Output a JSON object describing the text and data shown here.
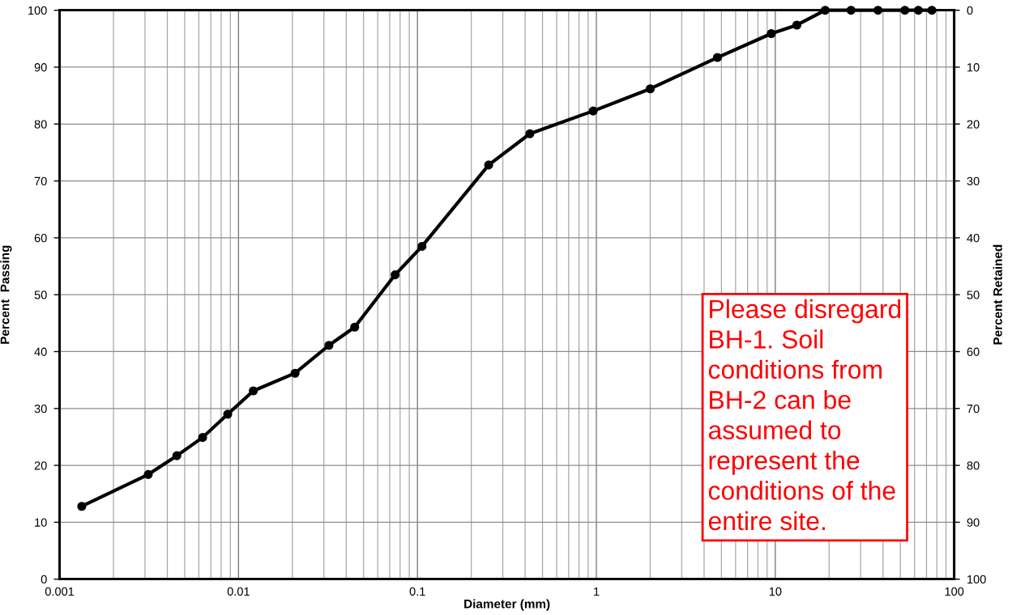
{
  "chart_data": {
    "type": "line",
    "xlabel": "Diameter (mm)",
    "ylabel": "Percent  Passing",
    "y2label": "Percent Retained",
    "x": [
      0.00133,
      0.00313,
      0.00452,
      0.0063,
      0.0087,
      0.0121,
      0.0207,
      0.032,
      0.0446,
      0.075,
      0.106,
      0.25,
      0.425,
      0.96,
      2.0,
      4.75,
      9.5,
      13.2,
      19,
      26.5,
      37.5,
      53,
      63,
      75
    ],
    "values": [
      12.8,
      18.4,
      21.7,
      24.9,
      29.0,
      33.1,
      36.2,
      41.1,
      44.3,
      53.5,
      58.5,
      72.8,
      78.3,
      82.3,
      86.2,
      91.7,
      95.9,
      97.4,
      100,
      100,
      100,
      100,
      100,
      100
    ],
    "color": "#000000",
    "marker": "circle",
    "line_style": "solid",
    "log": "x",
    "grid": true,
    "xlim": [
      0.001,
      100
    ],
    "xticks": [
      0.001,
      {
        "value": 0.002,
        "label": null
      },
      {
        "value": 0.003,
        "label": null
      },
      {
        "value": 0.004,
        "label": null
      },
      {
        "value": 0.005,
        "label": null
      },
      {
        "value": 0.006,
        "label": null
      },
      {
        "value": 0.007,
        "label": null
      },
      {
        "value": 0.008,
        "label": null
      },
      {
        "value": 0.009,
        "label": null
      },
      0.01,
      {
        "value": 0.02,
        "label": null
      },
      {
        "value": 0.03,
        "label": null
      },
      {
        "value": 0.04,
        "label": null
      },
      {
        "value": 0.05,
        "label": null
      },
      {
        "value": 0.06,
        "label": null
      },
      {
        "value": 0.07,
        "label": null
      },
      {
        "value": 0.08,
        "label": null
      },
      {
        "value": 0.09,
        "label": null
      },
      0.1,
      {
        "value": 0.2,
        "label": null
      },
      {
        "value": 0.3,
        "label": null
      },
      {
        "value": 0.4,
        "label": null
      },
      {
        "value": 0.5,
        "label": null
      },
      {
        "value": 0.6,
        "label": null
      },
      {
        "value": 0.7,
        "label": null
      },
      {
        "value": 0.8,
        "label": null
      },
      {
        "value": 0.9,
        "label": null
      },
      1,
      {
        "value": 2,
        "label": null
      },
      {
        "value": 3,
        "label": null
      },
      {
        "value": 4,
        "label": null
      },
      {
        "value": 5,
        "label": null
      },
      {
        "value": 6,
        "label": null
      },
      {
        "value": 7,
        "label": null
      },
      {
        "value": 8,
        "label": null
      },
      {
        "value": 9,
        "label": null
      },
      10,
      {
        "value": 20,
        "label": null
      },
      {
        "value": 30,
        "label": null
      },
      {
        "value": 40,
        "label": null
      },
      {
        "value": 50,
        "label": null
      },
      {
        "value": 60,
        "label": null
      },
      {
        "value": 70,
        "label": null
      },
      {
        "value": 80,
        "label": null
      },
      {
        "value": 90,
        "label": null
      },
      100
    ],
    "ylim": [
      0,
      100
    ],
    "yticks": [
      0,
      10,
      20,
      30,
      40,
      50,
      60,
      70,
      80,
      90,
      100
    ],
    "y2lim": [
      100,
      0
    ],
    "y2ticks": [
      0,
      10,
      20,
      30,
      40,
      50,
      60,
      70,
      80,
      90,
      100
    ],
    "annotations": [
      "Please disregard BH-1. Soil conditions from BH-2 can be assumed to represent the conditions of the entire site."
    ]
  }
}
